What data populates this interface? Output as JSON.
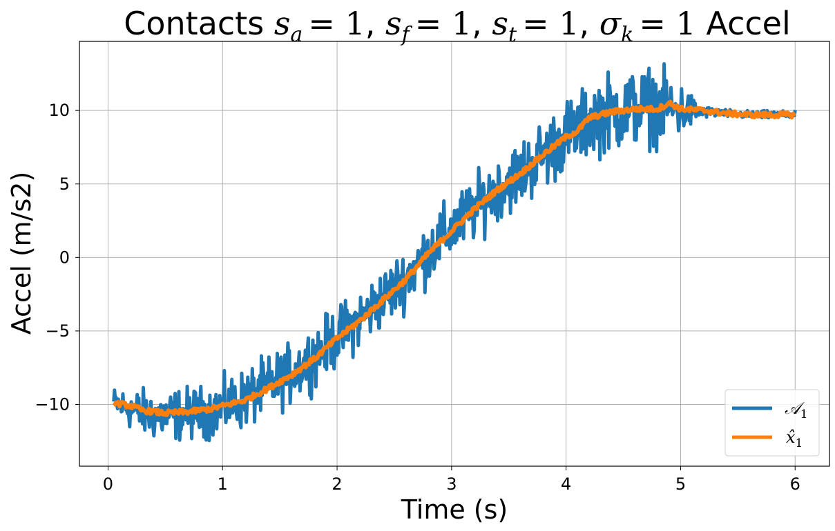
{
  "chart_data": {
    "type": "line",
    "title": "Contacts",
    "title_math": [
      {
        "base": "s",
        "sub": "a",
        "value": "= 1"
      },
      {
        "base": "s",
        "sub": "f",
        "value": "= 1"
      },
      {
        "base": "s",
        "sub": "t",
        "value": "= 1"
      },
      {
        "base": "σ",
        "sub": "k",
        "value": "= 1"
      }
    ],
    "title_suffix": "Accel",
    "xlabel": "Time (s)",
    "ylabel": "Accel (m/s2)",
    "xlim": [
      -0.25,
      6.3
    ],
    "ylim": [
      -14.2,
      14.7
    ],
    "xticks": [
      0,
      1,
      2,
      3,
      4,
      5,
      6
    ],
    "yticks": [
      -10,
      -5,
      0,
      5,
      10
    ],
    "ytick_labels": [
      "−10",
      "−5",
      "0",
      "5",
      "10"
    ],
    "grid": true,
    "legend_position": "lower-right",
    "series": [
      {
        "name": "𝒜₁",
        "legend_base": "𝒜",
        "legend_sub": "1",
        "color": "#1f77b4",
        "x": [
          0.05,
          0.3,
          0.5,
          0.7,
          0.9,
          1.0,
          1.2,
          1.4,
          1.6,
          1.8,
          2.0,
          2.2,
          2.4,
          2.6,
          2.8,
          3.0,
          3.2,
          3.4,
          3.6,
          3.8,
          4.0,
          4.15,
          4.2,
          4.4,
          4.6,
          4.8,
          5.0,
          5.2,
          5.4,
          5.6,
          5.8,
          6.0
        ],
        "y": [
          -9.9,
          -10.6,
          -10.8,
          -10.6,
          -10.5,
          -10.2,
          -9.6,
          -8.8,
          -7.9,
          -6.7,
          -5.4,
          -4.2,
          -2.8,
          -1.4,
          0.4,
          1.9,
          3.3,
          4.7,
          5.7,
          7.0,
          8.3,
          8.9,
          9.5,
          9.9,
          10.2,
          10.3,
          10.0,
          9.9,
          9.8,
          9.7,
          9.7,
          9.7
        ],
        "noise_amplitude": [
          0.8,
          1.2,
          1.3,
          1.3,
          1.3,
          1.4,
          1.5,
          1.5,
          1.5,
          1.5,
          1.5,
          1.5,
          1.5,
          1.5,
          1.6,
          1.6,
          1.6,
          1.6,
          1.7,
          1.8,
          1.8,
          1.8,
          1.9,
          2.0,
          2.0,
          1.9,
          1.4,
          0.3,
          0.2,
          0.2,
          0.2,
          0.2
        ]
      },
      {
        "name": "x̂₁",
        "legend_base": "x̂",
        "legend_sub": "1",
        "color": "#ff7f0e",
        "x": [
          0.05,
          0.2,
          0.3,
          0.5,
          0.7,
          0.9,
          1.0,
          1.2,
          1.4,
          1.6,
          1.8,
          2.0,
          2.2,
          2.4,
          2.6,
          2.8,
          3.0,
          3.2,
          3.4,
          3.6,
          3.8,
          4.0,
          4.1,
          4.2,
          4.4,
          4.6,
          4.8,
          4.9,
          5.0,
          5.2,
          5.4,
          5.6,
          5.8,
          6.0
        ],
        "y": [
          -9.9,
          -10.1,
          -10.4,
          -10.6,
          -10.5,
          -10.3,
          -10.1,
          -9.7,
          -8.9,
          -8.0,
          -6.9,
          -5.5,
          -4.3,
          -2.9,
          -1.5,
          0.3,
          1.8,
          3.3,
          4.6,
          5.7,
          7.0,
          8.2,
          8.6,
          9.5,
          9.9,
          10.1,
          10.1,
          10.5,
          10.1,
          10.0,
          9.8,
          9.7,
          9.7,
          9.7
        ]
      }
    ]
  }
}
